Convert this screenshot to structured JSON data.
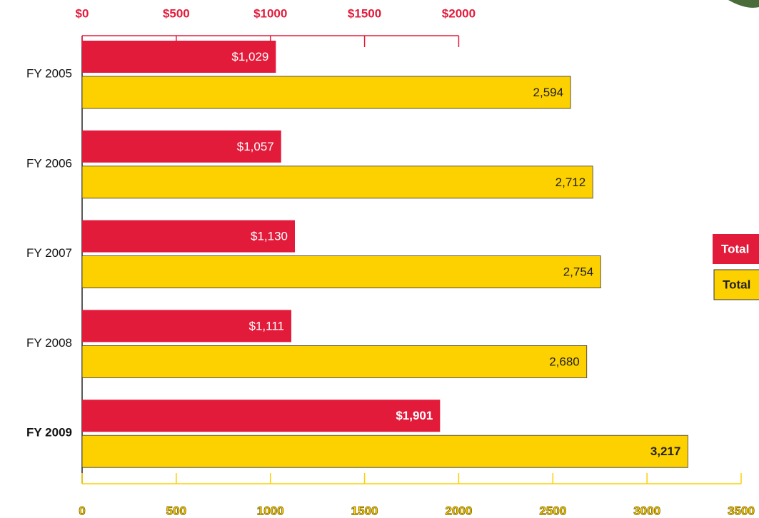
{
  "chart_data": {
    "type": "hbar",
    "categories": [
      "FY 2005",
      "FY 2006",
      "FY 2007",
      "FY 2008",
      "FY 2009"
    ],
    "series": [
      {
        "name": "Total",
        "color": "#e31b3b",
        "axis": "x2",
        "values": [
          1029,
          1057,
          1130,
          1111,
          1901
        ],
        "value_labels": [
          "$1,029",
          "$1,057",
          "$1,130",
          "$1,111",
          "$1,901"
        ]
      },
      {
        "name": "Total",
        "color": "#fdd000",
        "values": [
          2594,
          2712,
          2754,
          2680,
          3217
        ],
        "value_labels": [
          "2,594",
          "2,712",
          "2,754",
          "2,680",
          "3,217"
        ]
      }
    ],
    "xlim": [
      0,
      3500
    ],
    "xticks": [
      0,
      500,
      1000,
      1500,
      2000,
      2500,
      3000,
      3500
    ],
    "x2lim": [
      0,
      3500
    ],
    "x2ticks": [
      {
        "value": 0,
        "label": "$0"
      },
      {
        "value": 500,
        "label": "$500"
      },
      {
        "value": 1000,
        "label": "$1000"
      },
      {
        "value": 1500,
        "label": "$1500"
      },
      {
        "value": 2000,
        "label": "$2000"
      }
    ],
    "legend": "right"
  }
}
